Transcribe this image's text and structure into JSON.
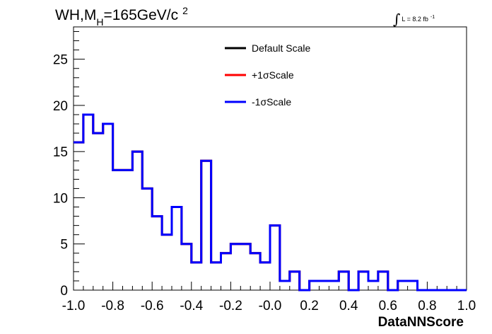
{
  "chart_data": {
    "type": "histogram",
    "title": {
      "main": "WH,M",
      "subscript": "H",
      "rest": "=165GeV/c",
      "superscript": "2"
    },
    "luminosity": {
      "symbol": "∫",
      "text": "L = 8.2 fb",
      "superscript": "-1"
    },
    "xlabel": "DataNNScore",
    "ylabel": "",
    "xlim": [
      -1.0,
      1.0
    ],
    "ylim": [
      0,
      28.5
    ],
    "x_ticks": [
      "-1.0",
      "-0.8",
      "-0.6",
      "-0.4",
      "-0.2",
      "-0.0",
      "0.2",
      "0.4",
      "0.6",
      "0.8",
      "1.0"
    ],
    "y_ticks": [
      "0",
      "5",
      "10",
      "15",
      "20",
      "25"
    ],
    "bin_edges_start": -1.0,
    "bin_width": 0.05,
    "legend": {
      "placement": "top-center",
      "entries": [
        {
          "label": "Default Scale",
          "color": "#000000"
        },
        {
          "label": "+1σScale",
          "color": "#ff0000"
        },
        {
          "label": "-1σScale",
          "color": "#0000ff"
        }
      ]
    },
    "series": [
      {
        "name": "Default Scale",
        "color": "#000000",
        "values": [
          16,
          19,
          17,
          18,
          13,
          13,
          15,
          11,
          8,
          6,
          9,
          5,
          3,
          14,
          3,
          4,
          5,
          5,
          4,
          3,
          7,
          1,
          2,
          0,
          1,
          1,
          1,
          2,
          0,
          2,
          1,
          2,
          0,
          1,
          1,
          0,
          0,
          0,
          0,
          0
        ]
      },
      {
        "name": "+1σScale",
        "color": "#ff0000",
        "values": [
          16,
          19,
          17,
          18,
          13,
          13,
          15,
          11,
          8,
          6,
          9,
          5,
          3,
          14,
          3,
          4,
          5,
          5,
          4,
          3,
          7,
          1,
          2,
          0,
          1,
          1,
          1,
          2,
          0,
          2,
          1,
          2,
          0,
          1,
          1,
          0,
          0,
          0,
          0,
          0
        ]
      },
      {
        "name": "-1σScale",
        "color": "#0000ff",
        "values": [
          16,
          19,
          17,
          18,
          13,
          13,
          15,
          11,
          8,
          6,
          9,
          5,
          3,
          14,
          3,
          4,
          5,
          5,
          4,
          3,
          7,
          1,
          2,
          0,
          1,
          1,
          1,
          2,
          0,
          2,
          1,
          2,
          0,
          1,
          1,
          0,
          0,
          0,
          0,
          0
        ]
      }
    ]
  }
}
